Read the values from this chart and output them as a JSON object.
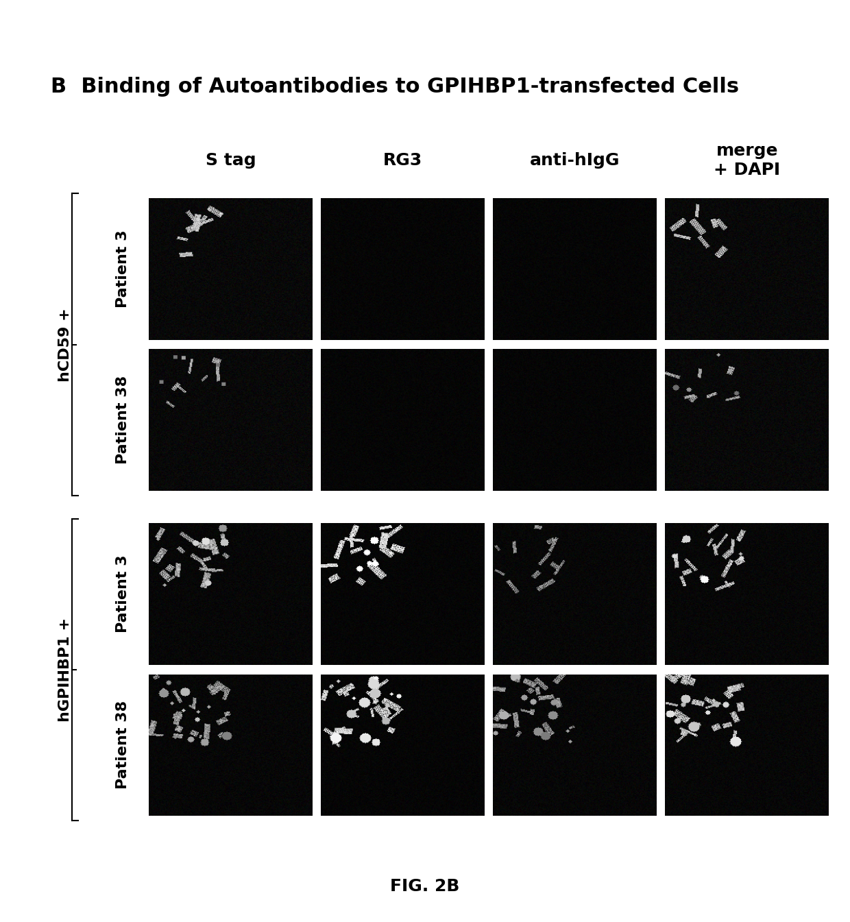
{
  "title": "B  Binding of Autoantibodies to GPIHBP1-transfected Cells",
  "fig_label": "FIG. 2B",
  "col_headers": [
    "S tag",
    "RG3",
    "anti-hIgG",
    "merge\n+ DAPI"
  ],
  "row_groups": [
    {
      "group_label": "hCD59 +",
      "rows": [
        "Patient 3",
        "Patient 38"
      ],
      "bracket": true
    },
    {
      "group_label": "hGPIHBP1 +",
      "rows": [
        "Patient 3",
        "Patient 38"
      ],
      "bracket": true
    }
  ],
  "background_color": "#ffffff",
  "cell_bg_color": "#111111",
  "title_fontsize": 22,
  "header_fontsize": 18,
  "row_label_fontsize": 16,
  "group_label_fontsize": 16,
  "fig_label_fontsize": 18
}
